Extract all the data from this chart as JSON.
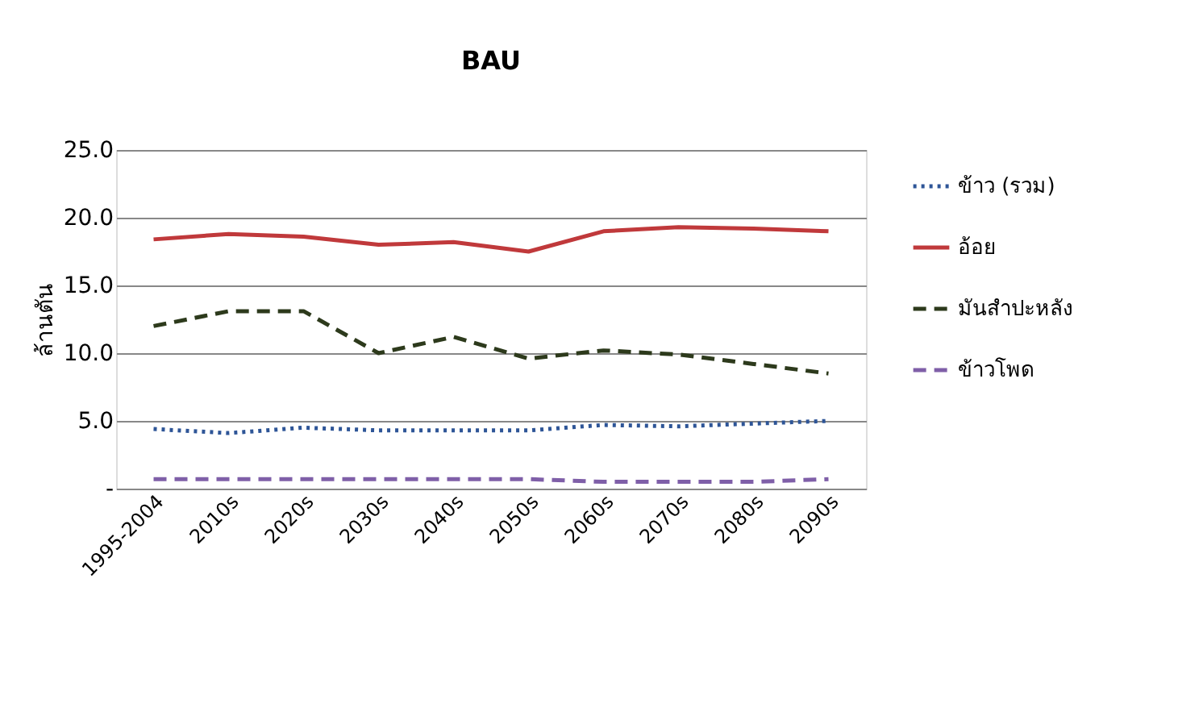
{
  "chart_data": {
    "type": "line",
    "title": "BAU",
    "ylabel": "ล้านตัน",
    "categories": [
      "1995-2004",
      "2010s",
      "2020s",
      "2030s",
      "2040s",
      "2050s",
      "2060s",
      "2070s",
      "2080s",
      "2090s"
    ],
    "series": [
      {
        "name": "ข้าว  (รวม)",
        "color": "#2e5597",
        "line_style": "dotted",
        "values": [
          4.4,
          4.1,
          4.5,
          4.3,
          4.3,
          4.3,
          4.7,
          4.6,
          4.8,
          5.0
        ]
      },
      {
        "name": "อ้อย",
        "color": "#c0393b",
        "line_style": "solid",
        "values": [
          18.4,
          18.8,
          18.6,
          18.0,
          18.2,
          17.5,
          19.0,
          19.3,
          19.2,
          19.0
        ]
      },
      {
        "name": "มันสำปะหลัง",
        "color": "#2d3a1c",
        "line_style": "dashed",
        "values": [
          12.0,
          13.1,
          13.1,
          10.0,
          11.2,
          9.6,
          10.2,
          9.9,
          9.2,
          8.5
        ]
      },
      {
        "name": "ข้าวโพด",
        "color": "#7f5fa8",
        "line_style": "dashed",
        "values": [
          0.7,
          0.7,
          0.7,
          0.7,
          0.7,
          0.7,
          0.5,
          0.5,
          0.5,
          0.7
        ]
      }
    ],
    "ylim": [
      0,
      25
    ],
    "yticks": [
      {
        "value": 0,
        "label": "-"
      },
      {
        "value": 5,
        "label": "5.0"
      },
      {
        "value": 10,
        "label": "10.0"
      },
      {
        "value": 15,
        "label": "15.0"
      },
      {
        "value": 20,
        "label": "20.0"
      },
      {
        "value": 25,
        "label": "25.0"
      }
    ],
    "grid": "y",
    "legend": "right",
    "marker": "none"
  }
}
